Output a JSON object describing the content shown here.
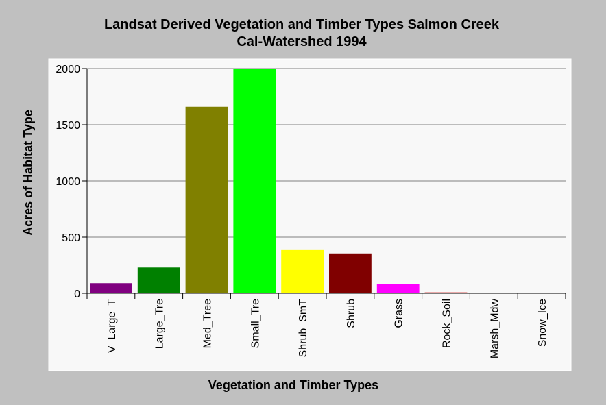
{
  "chart_data": {
    "type": "bar",
    "title": "Landsat Derived Vegetation and Timber Types Salmon Creek",
    "subtitle": "Cal-Watershed 1994",
    "xlabel": "Vegetation and Timber Types",
    "ylabel": "Acres of Habitat Type",
    "ylim": [
      0,
      2000
    ],
    "yticks": [
      "0",
      "500",
      "1000",
      "1500",
      "2000"
    ],
    "grid": true,
    "categories": [
      "V_Large_T",
      "Large_Tre",
      "Med_Tree",
      "Small_Tre",
      "Shrub_SmT",
      "Shrub",
      "Grass",
      "Rock_Soil",
      "Marsh_Mdw",
      "Snow_Ice"
    ],
    "values": [
      90,
      230,
      1660,
      2000,
      385,
      355,
      85,
      8,
      6,
      0
    ],
    "colors": [
      "#800080",
      "#008000",
      "#808000",
      "#00ff00",
      "#ffff00",
      "#800000",
      "#ff00ff",
      "#cc0000",
      "#008080",
      "#c0c0c0"
    ],
    "background": "#c0c0c0",
    "plot_background": "#f8f8f8"
  }
}
